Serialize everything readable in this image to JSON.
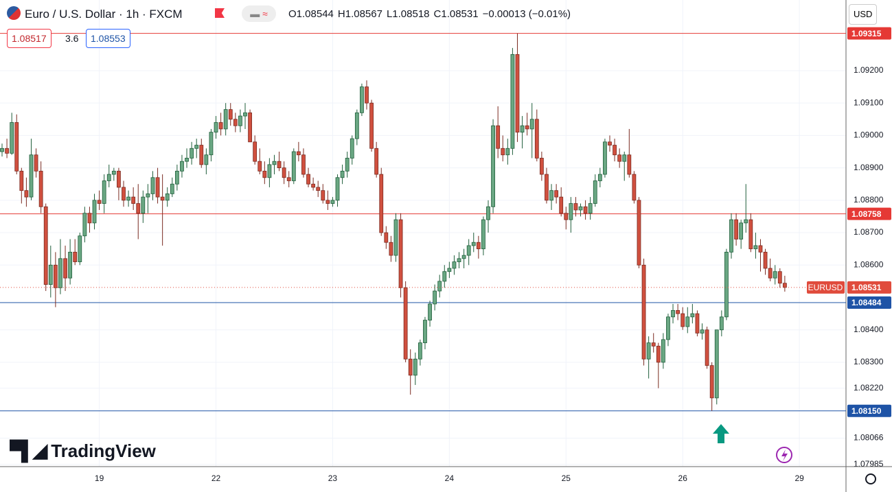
{
  "chart_data": {
    "type": "candlestick",
    "symbol": "Euro / U.S. Dollar · 1h · FXCM",
    "ohlc_text": [
      "O1.08544",
      "H1.08567",
      "L1.08518",
      "C1.08531",
      "−0.00013 (−0.01%)"
    ],
    "bid": "1.08517",
    "spread": "3.6",
    "ask": "1.08553",
    "currency": "USD",
    "brand": "TradingView",
    "up_color": "#6aa783",
    "up_border": "#1f5e3a",
    "down_color": "#d0503f",
    "down_border": "#7a2a20",
    "ylim": [
      1.07978,
      1.09418
    ],
    "yticks": [
      {
        "value": 1.092,
        "label": "1.09200"
      },
      {
        "value": 1.091,
        "label": "1.09100"
      },
      {
        "value": 1.09,
        "label": "1.09000"
      },
      {
        "value": 1.089,
        "label": "1.08900"
      },
      {
        "value": 1.088,
        "label": "1.08800"
      },
      {
        "value": 1.087,
        "label": "1.08700"
      },
      {
        "value": 1.086,
        "label": "1.08600"
      },
      {
        "value": 1.084,
        "label": "1.08400"
      },
      {
        "value": 1.083,
        "label": "1.08300"
      },
      {
        "value": 1.0822,
        "label": "1.08220"
      },
      {
        "value": 1.08066,
        "label": "1.08066"
      },
      {
        "value": 1.07985,
        "label": "1.07985"
      }
    ],
    "xticks": [
      {
        "value": 20,
        "label": "19"
      },
      {
        "value": 44,
        "label": "22"
      },
      {
        "value": 68,
        "label": "23"
      },
      {
        "value": 92,
        "label": "24"
      },
      {
        "value": 116,
        "label": "25"
      },
      {
        "value": 140,
        "label": "26"
      },
      {
        "value": 164,
        "label": "29"
      }
    ],
    "grid": true,
    "levels": [
      {
        "value": 1.09315,
        "label": "1.09315",
        "color": "#e53935"
      },
      {
        "value": 1.08758,
        "label": "1.08758",
        "color": "#e53935"
      },
      {
        "value": 1.08484,
        "label": "1.08484",
        "color": "#1e53a6"
      },
      {
        "value": 1.0815,
        "label": "1.08150",
        "color": "#1e53a6"
      }
    ],
    "last": {
      "name": "EURUSD",
      "value": 1.08531,
      "label": "1.08531",
      "color": "#e04b3c"
    },
    "candles": [
      [
        1.0895,
        1.08975,
        1.08935,
        1.0896
      ],
      [
        1.0896,
        1.0899,
        1.0893,
        1.08945
      ],
      [
        1.08945,
        1.0907,
        1.0894,
        1.0904
      ],
      [
        1.0904,
        1.09065,
        1.0888,
        1.0889
      ],
      [
        1.0889,
        1.089,
        1.0879,
        1.0883
      ],
      [
        1.0883,
        1.0887,
        1.0878,
        1.0881
      ],
      [
        1.0881,
        1.0899,
        1.088,
        1.0894
      ],
      [
        1.0894,
        1.0896,
        1.0887,
        1.0889
      ],
      [
        1.0889,
        1.0892,
        1.0876,
        1.0878
      ],
      [
        1.0878,
        1.0879,
        1.0852,
        1.0854
      ],
      [
        1.0854,
        1.0866,
        1.085,
        1.086
      ],
      [
        1.086,
        1.0864,
        1.0847,
        1.0853
      ],
      [
        1.0853,
        1.0868,
        1.0851,
        1.0862
      ],
      [
        1.0862,
        1.0866,
        1.0852,
        1.0856
      ],
      [
        1.0856,
        1.0868,
        1.0854,
        1.0864
      ],
      [
        1.0864,
        1.0868,
        1.086,
        1.0861
      ],
      [
        1.0861,
        1.087,
        1.086,
        1.0869
      ],
      [
        1.0869,
        1.0878,
        1.0867,
        1.0876
      ],
      [
        1.0876,
        1.0878,
        1.087,
        1.0873
      ],
      [
        1.0873,
        1.0882,
        1.0871,
        1.088
      ],
      [
        1.088,
        1.0883,
        1.0877,
        1.0879
      ],
      [
        1.0879,
        1.0888,
        1.0876,
        1.0886
      ],
      [
        1.0886,
        1.0891,
        1.0884,
        1.0888
      ],
      [
        1.0888,
        1.089,
        1.0886,
        1.0889
      ],
      [
        1.0889,
        1.089,
        1.088,
        1.0884
      ],
      [
        1.0884,
        1.0886,
        1.0878,
        1.088
      ],
      [
        1.088,
        1.0883,
        1.0878,
        1.0881
      ],
      [
        1.0881,
        1.0884,
        1.0877,
        1.0879
      ],
      [
        1.0879,
        1.0885,
        1.0868,
        1.0876
      ],
      [
        1.0876,
        1.0883,
        1.0873,
        1.0881
      ],
      [
        1.0881,
        1.0885,
        1.0876,
        1.0882
      ],
      [
        1.0882,
        1.0889,
        1.088,
        1.0887
      ],
      [
        1.0887,
        1.089,
        1.0879,
        1.0881
      ],
      [
        1.0881,
        1.0888,
        1.0866,
        1.088
      ],
      [
        1.088,
        1.0884,
        1.0878,
        1.0882
      ],
      [
        1.0882,
        1.0887,
        1.0881,
        1.0885
      ],
      [
        1.0885,
        1.0891,
        1.0883,
        1.0889
      ],
      [
        1.0889,
        1.0894,
        1.0887,
        1.0892
      ],
      [
        1.0892,
        1.0896,
        1.089,
        1.0893
      ],
      [
        1.0893,
        1.0898,
        1.0891,
        1.0896
      ],
      [
        1.0896,
        1.0899,
        1.0893,
        1.0897
      ],
      [
        1.0897,
        1.0899,
        1.089,
        1.0891
      ],
      [
        1.0891,
        1.0896,
        1.0888,
        1.0894
      ],
      [
        1.0894,
        1.0902,
        1.0892,
        1.0901
      ],
      [
        1.0901,
        1.0906,
        1.0899,
        1.0904
      ],
      [
        1.0904,
        1.0907,
        1.09,
        1.0902
      ],
      [
        1.0902,
        1.091,
        1.09,
        1.0908
      ],
      [
        1.0908,
        1.091,
        1.0903,
        1.0905
      ],
      [
        1.0905,
        1.0907,
        1.0901,
        1.0903
      ],
      [
        1.0903,
        1.0908,
        1.0901,
        1.0906
      ],
      [
        1.0906,
        1.091,
        1.0902,
        1.0907
      ],
      [
        1.0907,
        1.0908,
        1.0898,
        1.0898
      ],
      [
        1.0898,
        1.09,
        1.0891,
        1.0892
      ],
      [
        1.0892,
        1.0896,
        1.0888,
        1.0889
      ],
      [
        1.0889,
        1.0892,
        1.0885,
        1.0887
      ],
      [
        1.0887,
        1.0893,
        1.0884,
        1.0891
      ],
      [
        1.0891,
        1.0894,
        1.0888,
        1.0892
      ],
      [
        1.0892,
        1.0895,
        1.0889,
        1.089
      ],
      [
        1.089,
        1.0892,
        1.0885,
        1.0887
      ],
      [
        1.0887,
        1.0889,
        1.0884,
        1.0886
      ],
      [
        1.0886,
        1.0896,
        1.0885,
        1.0895
      ],
      [
        1.0895,
        1.0898,
        1.0892,
        1.0894
      ],
      [
        1.0894,
        1.0896,
        1.0887,
        1.0888
      ],
      [
        1.0888,
        1.089,
        1.0884,
        1.0885
      ],
      [
        1.0885,
        1.0887,
        1.0883,
        1.0884
      ],
      [
        1.0884,
        1.0886,
        1.0881,
        1.0883
      ],
      [
        1.0883,
        1.0885,
        1.0879,
        1.088
      ],
      [
        1.088,
        1.0883,
        1.0877,
        1.0879
      ],
      [
        1.0879,
        1.0881,
        1.0878,
        1.088
      ],
      [
        1.088,
        1.0888,
        1.0878,
        1.0887
      ],
      [
        1.0887,
        1.0891,
        1.0885,
        1.0889
      ],
      [
        1.0889,
        1.0895,
        1.0887,
        1.0893
      ],
      [
        1.0893,
        1.09,
        1.0891,
        1.0899
      ],
      [
        1.0899,
        1.0908,
        1.0897,
        1.0907
      ],
      [
        1.0907,
        1.0916,
        1.0906,
        1.0915
      ],
      [
        1.0915,
        1.0917,
        1.0908,
        1.091
      ],
      [
        1.091,
        1.0911,
        1.0895,
        1.0896
      ],
      [
        1.0896,
        1.0898,
        1.0887,
        1.0888
      ],
      [
        1.0888,
        1.089,
        1.0869,
        1.087
      ],
      [
        1.087,
        1.0872,
        1.0865,
        1.0867
      ],
      [
        1.0867,
        1.0869,
        1.0861,
        1.0863
      ],
      [
        1.0863,
        1.0876,
        1.0861,
        1.0874
      ],
      [
        1.0874,
        1.0876,
        1.085,
        1.0853
      ],
      [
        1.0853,
        1.0855,
        1.083,
        1.0831
      ],
      [
        1.0831,
        1.0834,
        1.082,
        1.0826
      ],
      [
        1.0826,
        1.0833,
        1.0823,
        1.0831
      ],
      [
        1.0831,
        1.0837,
        1.0829,
        1.0836
      ],
      [
        1.0836,
        1.0844,
        1.0834,
        1.0843
      ],
      [
        1.0843,
        1.0849,
        1.0841,
        1.0848
      ],
      [
        1.0848,
        1.0854,
        1.0846,
        1.0852
      ],
      [
        1.0852,
        1.0857,
        1.085,
        1.0855
      ],
      [
        1.0855,
        1.086,
        1.0853,
        1.0858
      ],
      [
        1.0858,
        1.0861,
        1.0856,
        1.0859
      ],
      [
        1.0859,
        1.0863,
        1.0857,
        1.0861
      ],
      [
        1.0861,
        1.0864,
        1.0859,
        1.0862
      ],
      [
        1.0862,
        1.0865,
        1.0859,
        1.0863
      ],
      [
        1.0863,
        1.0868,
        1.086,
        1.0866
      ],
      [
        1.0866,
        1.087,
        1.0864,
        1.0867
      ],
      [
        1.0867,
        1.0869,
        1.0862,
        1.0865
      ],
      [
        1.0865,
        1.0875,
        1.0863,
        1.0874
      ],
      [
        1.0874,
        1.088,
        1.087,
        1.0878
      ],
      [
        1.0878,
        1.0905,
        1.0876,
        1.0903
      ],
      [
        1.0903,
        1.0909,
        1.0893,
        1.0896
      ],
      [
        1.0896,
        1.09,
        1.0892,
        1.0894
      ],
      [
        1.0894,
        1.0899,
        1.0891,
        1.0896
      ],
      [
        1.0896,
        1.0927,
        1.0894,
        1.0925
      ],
      [
        1.0925,
        1.09315,
        1.0898,
        1.0901
      ],
      [
        1.0901,
        1.0906,
        1.0896,
        1.0903
      ],
      [
        1.0903,
        1.0907,
        1.09,
        1.0902
      ],
      [
        1.0902,
        1.091,
        1.0893,
        1.0905
      ],
      [
        1.0905,
        1.0908,
        1.0892,
        1.0893
      ],
      [
        1.0893,
        1.0895,
        1.0886,
        1.0888
      ],
      [
        1.0888,
        1.089,
        1.0879,
        1.088
      ],
      [
        1.088,
        1.0885,
        1.0877,
        1.0883
      ],
      [
        1.0883,
        1.0885,
        1.0879,
        1.0881
      ],
      [
        1.0881,
        1.0884,
        1.0875,
        1.0876
      ],
      [
        1.0876,
        1.0878,
        1.0871,
        1.0874
      ],
      [
        1.0874,
        1.0881,
        1.087,
        1.0879
      ],
      [
        1.0879,
        1.0881,
        1.0875,
        1.0877
      ],
      [
        1.0877,
        1.0879,
        1.0875,
        1.0878
      ],
      [
        1.0878,
        1.088,
        1.0874,
        1.0876
      ],
      [
        1.0876,
        1.0881,
        1.0874,
        1.0879
      ],
      [
        1.0879,
        1.0888,
        1.0878,
        1.0886
      ],
      [
        1.0886,
        1.089,
        1.0884,
        1.0888
      ],
      [
        1.0888,
        1.0899,
        1.0887,
        1.0898
      ],
      [
        1.0898,
        1.09,
        1.0895,
        1.0897
      ],
      [
        1.0897,
        1.0899,
        1.0892,
        1.0894
      ],
      [
        1.0894,
        1.0896,
        1.089,
        1.0892
      ],
      [
        1.0892,
        1.0895,
        1.0886,
        1.0894
      ],
      [
        1.0894,
        1.0902,
        1.0887,
        1.0888
      ],
      [
        1.0888,
        1.0889,
        1.0879,
        1.088
      ],
      [
        1.088,
        1.0881,
        1.0859,
        1.086
      ],
      [
        1.086,
        1.0862,
        1.0829,
        1.0831
      ],
      [
        1.0831,
        1.0838,
        1.0825,
        1.0836
      ],
      [
        1.0836,
        1.0839,
        1.0833,
        1.0835
      ],
      [
        1.0835,
        1.0836,
        1.0822,
        1.083
      ],
      [
        1.083,
        1.0839,
        1.0828,
        1.0837
      ],
      [
        1.0837,
        1.0845,
        1.0835,
        1.0844
      ],
      [
        1.0844,
        1.0848,
        1.0842,
        1.0846
      ],
      [
        1.0846,
        1.0848,
        1.0843,
        1.0845
      ],
      [
        1.0845,
        1.0847,
        1.084,
        1.0841
      ],
      [
        1.0841,
        1.0847,
        1.0839,
        1.0844
      ],
      [
        1.0844,
        1.0848,
        1.0842,
        1.0845
      ],
      [
        1.0845,
        1.0846,
        1.0838,
        1.0839
      ],
      [
        1.0839,
        1.0842,
        1.0837,
        1.084
      ],
      [
        1.084,
        1.0841,
        1.0828,
        1.0829
      ],
      [
        1.0829,
        1.083,
        1.0815,
        1.0819
      ],
      [
        1.0819,
        1.084,
        1.0817,
        1.084
      ],
      [
        1.084,
        1.0846,
        1.0838,
        1.0844
      ],
      [
        1.0844,
        1.0865,
        1.0843,
        1.0864
      ],
      [
        1.0864,
        1.0876,
        1.0862,
        1.0874
      ],
      [
        1.0874,
        1.0876,
        1.0866,
        1.0868
      ],
      [
        1.0868,
        1.0874,
        1.0865,
        1.0873
      ],
      [
        1.0873,
        1.0885,
        1.087,
        1.0874
      ],
      [
        1.0874,
        1.0876,
        1.0864,
        1.0865
      ],
      [
        1.0865,
        1.087,
        1.0862,
        1.0866
      ],
      [
        1.0866,
        1.0868,
        1.0858,
        1.0864
      ],
      [
        1.0864,
        1.0865,
        1.0857,
        1.0859
      ],
      [
        1.0859,
        1.0862,
        1.0855,
        1.0856
      ],
      [
        1.0856,
        1.086,
        1.0854,
        1.0858
      ],
      [
        1.0858,
        1.0859,
        1.0853,
        1.08544
      ],
      [
        1.08544,
        1.08567,
        1.08518,
        1.08531
      ]
    ]
  }
}
